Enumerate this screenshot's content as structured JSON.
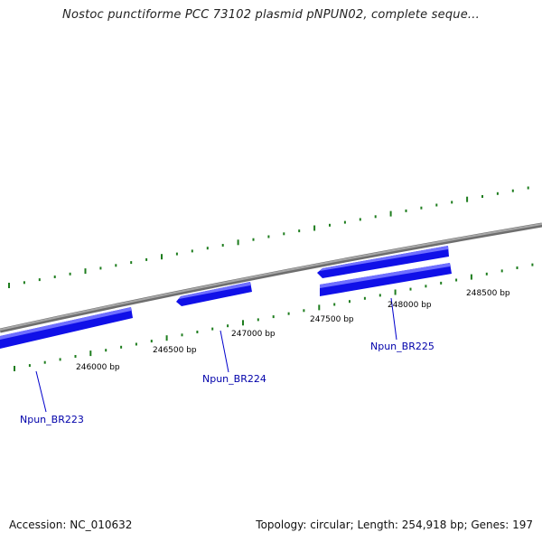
{
  "title": "Nostoc punctiforme PCC 73102 plasmid pNPUN02, complete seque...",
  "footer": {
    "accession": "Accession: NC_010632",
    "summary": "Topology: circular; Length: 254,918 bp; Genes: 197"
  },
  "colors": {
    "gene_fill": "#1010e8",
    "gene_highlight": "#6f6fff",
    "backbone": "#8c8c8c",
    "tick": "#1e7d1e",
    "gene_label": "#0000aa",
    "tick_label": "#000000"
  },
  "scale_labels": [
    "246000 bp",
    "246500 bp",
    "247000 bp",
    "247500 bp",
    "248000 bp",
    "248500 bp"
  ],
  "genes": [
    {
      "name": "Npun_BR223"
    },
    {
      "name": "Npun_BR224"
    },
    {
      "name": "Npun_BR225"
    }
  ]
}
